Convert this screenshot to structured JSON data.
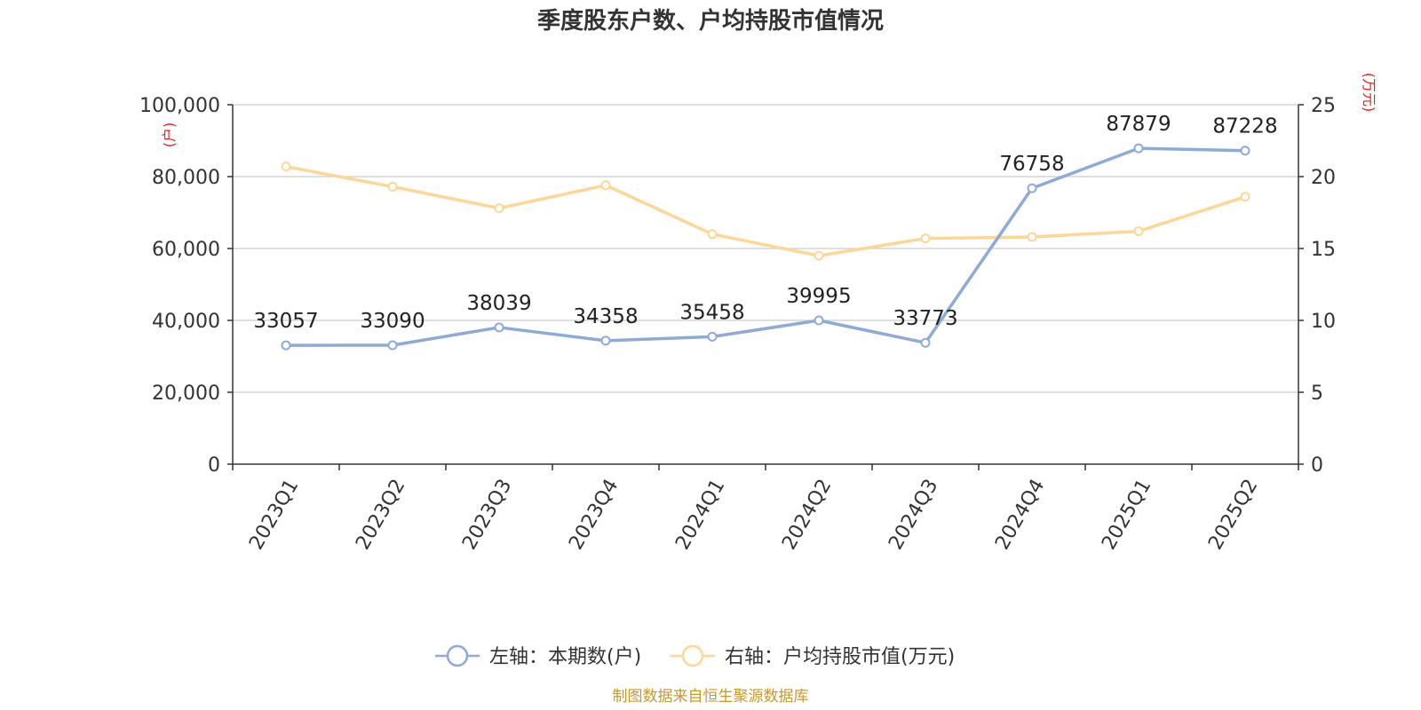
{
  "colors": {
    "left_series": "#8eaad6",
    "right_series": "#fdd795",
    "unit_label": "#e3211c",
    "source": "#c8982d",
    "grid": "#cccccc",
    "axis": "#333333"
  },
  "chart_data": {
    "type": "line",
    "title": "季度股东户数、户均持股市值情况",
    "categories": [
      "2023Q1",
      "2023Q2",
      "2023Q3",
      "2023Q4",
      "2024Q1",
      "2024Q2",
      "2024Q3",
      "2024Q4",
      "2025Q1",
      "2025Q2"
    ],
    "left_axis": {
      "unit": "(户)",
      "ylim": [
        0,
        100000
      ],
      "ticks": [
        0,
        20000,
        40000,
        60000,
        80000,
        100000
      ],
      "tick_labels": [
        "0",
        "20,000",
        "40,000",
        "60,000",
        "80,000",
        "100,000"
      ]
    },
    "right_axis": {
      "unit": "(万元)",
      "ylim": [
        0,
        25
      ],
      "ticks": [
        0,
        5,
        10,
        15,
        20,
        25
      ],
      "tick_labels": [
        "0",
        "5",
        "10",
        "15",
        "20",
        "25"
      ]
    },
    "series": [
      {
        "name": "左轴：本期数(户)",
        "axis": "left",
        "values": [
          33057,
          33090,
          38039,
          34358,
          35458,
          39995,
          33773,
          76758,
          87879,
          87228
        ],
        "labels": [
          "33057",
          "33090",
          "38039",
          "34358",
          "35458",
          "39995",
          "33773",
          "76758",
          "87879",
          "87228"
        ]
      },
      {
        "name": "右轴：户均持股市值(万元)",
        "axis": "right",
        "values": [
          20.7,
          19.3,
          17.8,
          19.4,
          16.0,
          14.5,
          15.7,
          15.8,
          16.2,
          18.6
        ]
      }
    ],
    "legend_position": "bottom-center",
    "grid": true
  },
  "source_text": "制图数据来自恒生聚源数据库"
}
